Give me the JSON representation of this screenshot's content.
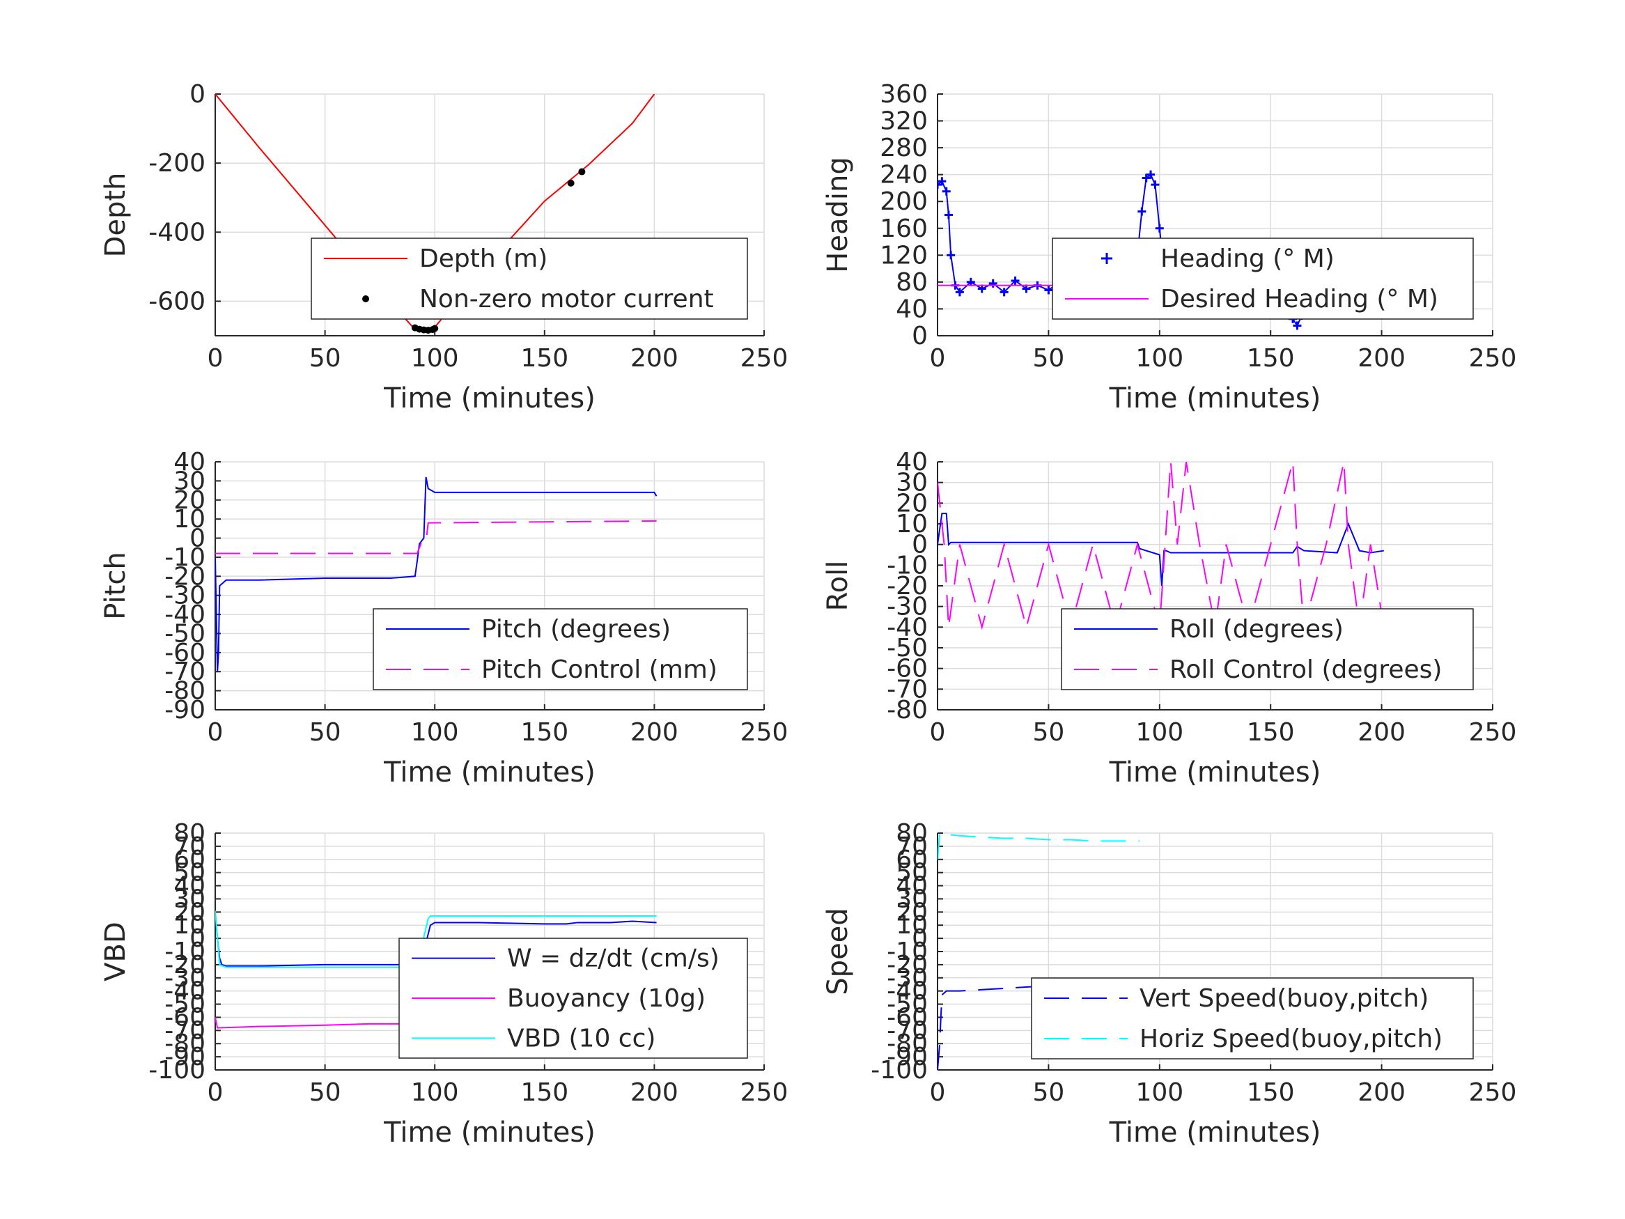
{
  "chart_data": [
    {
      "type": "line",
      "xlabel": "Time (minutes)",
      "ylabel": "Depth",
      "xlim": [
        0,
        250
      ],
      "ylim": [
        -700,
        0
      ],
      "xticks": [
        "0",
        "50",
        "100",
        "150",
        "200",
        "250"
      ],
      "yticks": [
        "0",
        "-200",
        "-400",
        "-600"
      ],
      "grid": true,
      "legend": "bottom-right",
      "series": [
        {
          "name": "Depth (m)",
          "color": "#ff0000",
          "style": "solid",
          "x": [
            0,
            20,
            40,
            60,
            80,
            90,
            95,
            97,
            100,
            110,
            130,
            150,
            170,
            190,
            200
          ],
          "y": [
            0,
            -155,
            -305,
            -455,
            -605,
            -675,
            -690,
            -688,
            -675,
            -600,
            -450,
            -310,
            -205,
            -85,
            0
          ]
        },
        {
          "name": "Non-zero motor current",
          "color": "#000000",
          "style": "dots",
          "x": [
            91,
            93,
            95,
            97,
            99,
            100,
            162,
            167
          ],
          "y": [
            -677,
            -681,
            -683,
            -684,
            -682,
            -679,
            -258,
            -225
          ]
        }
      ]
    },
    {
      "type": "line",
      "xlabel": "Time (minutes)",
      "ylabel": "Heading",
      "xlim": [
        0,
        250
      ],
      "ylim": [
        0,
        360
      ],
      "xticks": [
        "0",
        "50",
        "100",
        "150",
        "200",
        "250"
      ],
      "yticks": [
        "0",
        "40",
        "80",
        "120",
        "160",
        "200",
        "240",
        "280",
        "320",
        "360"
      ],
      "grid": true,
      "legend": "center-right",
      "series": [
        {
          "name": "Heading (° M)",
          "color": "#0000ff",
          "style": "plus",
          "x": [
            0,
            2,
            4,
            5,
            6,
            8,
            10,
            15,
            20,
            25,
            30,
            35,
            40,
            45,
            50,
            55,
            60,
            65,
            70,
            75,
            80,
            85,
            88,
            90,
            92,
            94,
            96,
            98,
            100,
            102,
            105,
            110,
            115,
            120,
            125,
            130,
            135,
            140,
            145,
            150,
            155,
            158,
            160,
            162,
            164,
            166,
            170,
            175,
            180,
            185,
            190,
            195,
            200
          ],
          "y": [
            225,
            230,
            215,
            180,
            120,
            75,
            65,
            80,
            70,
            78,
            65,
            82,
            70,
            75,
            68,
            80,
            72,
            66,
            78,
            72,
            70,
            80,
            75,
            120,
            185,
            235,
            240,
            225,
            160,
            95,
            75,
            70,
            80,
            65,
            85,
            72,
            70,
            80,
            75,
            70,
            85,
            60,
            25,
            15,
            30,
            75,
            85,
            70,
            80,
            72,
            85,
            75,
            70
          ]
        },
        {
          "name": "Desired Heading (° M)",
          "color": "#ff00ff",
          "style": "solid",
          "x": [
            0,
            202
          ],
          "y": [
            75,
            75
          ]
        }
      ]
    },
    {
      "type": "line",
      "xlabel": "Time (minutes)",
      "ylabel": "Pitch",
      "xlim": [
        0,
        250
      ],
      "ylim": [
        -90,
        40
      ],
      "xticks": [
        "0",
        "50",
        "100",
        "150",
        "200",
        "250"
      ],
      "yticks": [
        "-90",
        "-80",
        "-70",
        "-60",
        "-50",
        "-40",
        "-30",
        "-20",
        "-10",
        "0",
        "10",
        "20",
        "30",
        "40"
      ],
      "grid": true,
      "legend": "bottom-right",
      "series": [
        {
          "name": "Pitch (degrees)",
          "color": "#0000ff",
          "style": "solid",
          "x": [
            0,
            1,
            1.5,
            2,
            3,
            5,
            20,
            50,
            80,
            91,
            92,
            93,
            95,
            96,
            97,
            100,
            120,
            150,
            180,
            200,
            201
          ],
          "y": [
            -10,
            -70,
            -60,
            -25,
            -24,
            -22,
            -22,
            -21,
            -21,
            -20,
            -12,
            -3,
            0,
            32,
            26,
            24,
            24,
            24,
            24,
            24,
            22
          ]
        },
        {
          "name": "Pitch Control (mm)",
          "color": "#ff00ff",
          "style": "dashed",
          "x": [
            0,
            92,
            94,
            96,
            97,
            201
          ],
          "y": [
            -8,
            -8,
            -2,
            -2,
            8,
            9
          ]
        }
      ]
    },
    {
      "type": "line",
      "xlabel": "Time (minutes)",
      "ylabel": "Roll",
      "xlim": [
        0,
        250
      ],
      "ylim": [
        -80,
        40
      ],
      "xticks": [
        "0",
        "50",
        "100",
        "150",
        "200",
        "250"
      ],
      "yticks": [
        "-80",
        "-70",
        "-60",
        "-50",
        "-40",
        "-30",
        "-20",
        "-10",
        "0",
        "10",
        "20",
        "30",
        "40"
      ],
      "grid": true,
      "legend": "bottom-right",
      "series": [
        {
          "name": "Roll (degrees)",
          "color": "#0000ff",
          "style": "solid",
          "x": [
            0,
            2,
            4,
            5,
            6,
            10,
            30,
            50,
            70,
            90,
            91,
            100,
            101,
            102,
            103,
            105,
            120,
            130,
            150,
            160,
            162,
            165,
            180,
            185,
            190,
            195,
            201
          ],
          "y": [
            0,
            15,
            15,
            0,
            1,
            1,
            1,
            1,
            1,
            1,
            -2,
            -5,
            -20,
            -3,
            -3,
            -4,
            -4,
            -4,
            -4,
            -4,
            -1,
            -3,
            -4,
            10,
            -3,
            -4,
            -3
          ]
        },
        {
          "name": "Roll Control (degrees)",
          "color": "#ff00ff",
          "style": "dashed",
          "x": [
            0,
            3,
            5,
            10,
            20,
            30,
            40,
            50,
            60,
            70,
            80,
            90,
            100,
            105,
            108,
            112,
            118,
            125,
            130,
            140,
            150,
            160,
            162,
            165,
            175,
            183,
            185,
            190,
            195,
            201
          ],
          "y": [
            30,
            0,
            -40,
            0,
            -40,
            0,
            -40,
            0,
            -40,
            0,
            -40,
            0,
            -40,
            40,
            0,
            40,
            0,
            -40,
            0,
            -40,
            0,
            40,
            0,
            -40,
            0,
            40,
            0,
            -40,
            0,
            -40
          ]
        }
      ]
    },
    {
      "type": "line",
      "xlabel": "Time (minutes)",
      "ylabel": "VBD",
      "xlim": [
        0,
        250
      ],
      "ylim": [
        -100,
        80
      ],
      "xticks": [
        "0",
        "50",
        "100",
        "150",
        "200",
        "250"
      ],
      "yticks": [
        "-100",
        "-90",
        "-80",
        "-70",
        "-60",
        "-50",
        "-40",
        "-30",
        "-20",
        "-10",
        "0",
        "10",
        "20",
        "30",
        "40",
        "50",
        "60",
        "70",
        "80"
      ],
      "grid": true,
      "legend": "bottom-right",
      "series": [
        {
          "name": "W = dz/dt (cm/s)",
          "color": "#0000ff",
          "style": "solid",
          "x": [
            0,
            1,
            2,
            3,
            5,
            20,
            50,
            80,
            90,
            92,
            95,
            98,
            100,
            120,
            150,
            160,
            165,
            180,
            190,
            201
          ],
          "y": [
            20,
            0,
            -15,
            -20,
            -21,
            -21,
            -20,
            -20,
            -20,
            -18,
            -10,
            10,
            12,
            12,
            11,
            11,
            12,
            12,
            13,
            12
          ]
        },
        {
          "name": "Buoyancy (10g)",
          "color": "#ff00ff",
          "style": "solid",
          "x": [
            0,
            1,
            2,
            20,
            50,
            70,
            91
          ],
          "y": [
            -60,
            -68,
            -68,
            -67,
            -66,
            -65,
            -65
          ]
        },
        {
          "name": "VBD (10 cc)",
          "color": "#00ffff",
          "style": "solid",
          "x": [
            0,
            2,
            5,
            20,
            50,
            90,
            92,
            97,
            98,
            100,
            150,
            160,
            170,
            180,
            201
          ],
          "y": [
            21,
            -20,
            -22,
            -22,
            -22,
            -22,
            -20,
            15,
            17,
            17,
            17,
            17,
            17,
            17,
            17
          ]
        }
      ]
    },
    {
      "type": "line",
      "xlabel": "Time (minutes)",
      "ylabel": "Speed",
      "xlim": [
        0,
        250
      ],
      "ylim": [
        -100,
        80
      ],
      "xticks": [
        "0",
        "50",
        "100",
        "150",
        "200",
        "250"
      ],
      "yticks": [
        "-100",
        "-90",
        "-80",
        "-70",
        "-60",
        "-50",
        "-40",
        "-30",
        "-20",
        "-10",
        "0",
        "10",
        "20",
        "30",
        "40",
        "50",
        "60",
        "70",
        "80"
      ],
      "grid": true,
      "legend": "bottom-right",
      "series": [
        {
          "name": "Vert Speed(buoy,pitch)",
          "color": "#0000ff",
          "style": "dashed",
          "x": [
            0,
            1,
            1.5,
            2,
            4,
            10,
            20,
            30,
            40,
            50,
            60,
            70,
            80,
            91
          ],
          "y": [
            -100,
            -80,
            -60,
            -43,
            -40,
            -40,
            -39,
            -38,
            -37,
            -36,
            -36,
            -35,
            -35,
            -35
          ]
        },
        {
          "name": "Horiz Speed(buoy,pitch)",
          "color": "#00ffff",
          "style": "dashed",
          "x": [
            0,
            1,
            2,
            4,
            10,
            20,
            30,
            40,
            50,
            60,
            70,
            80,
            91
          ],
          "y": [
            60,
            80,
            79,
            79,
            78,
            77,
            76,
            76,
            75,
            75,
            74,
            74,
            74
          ]
        }
      ]
    }
  ]
}
